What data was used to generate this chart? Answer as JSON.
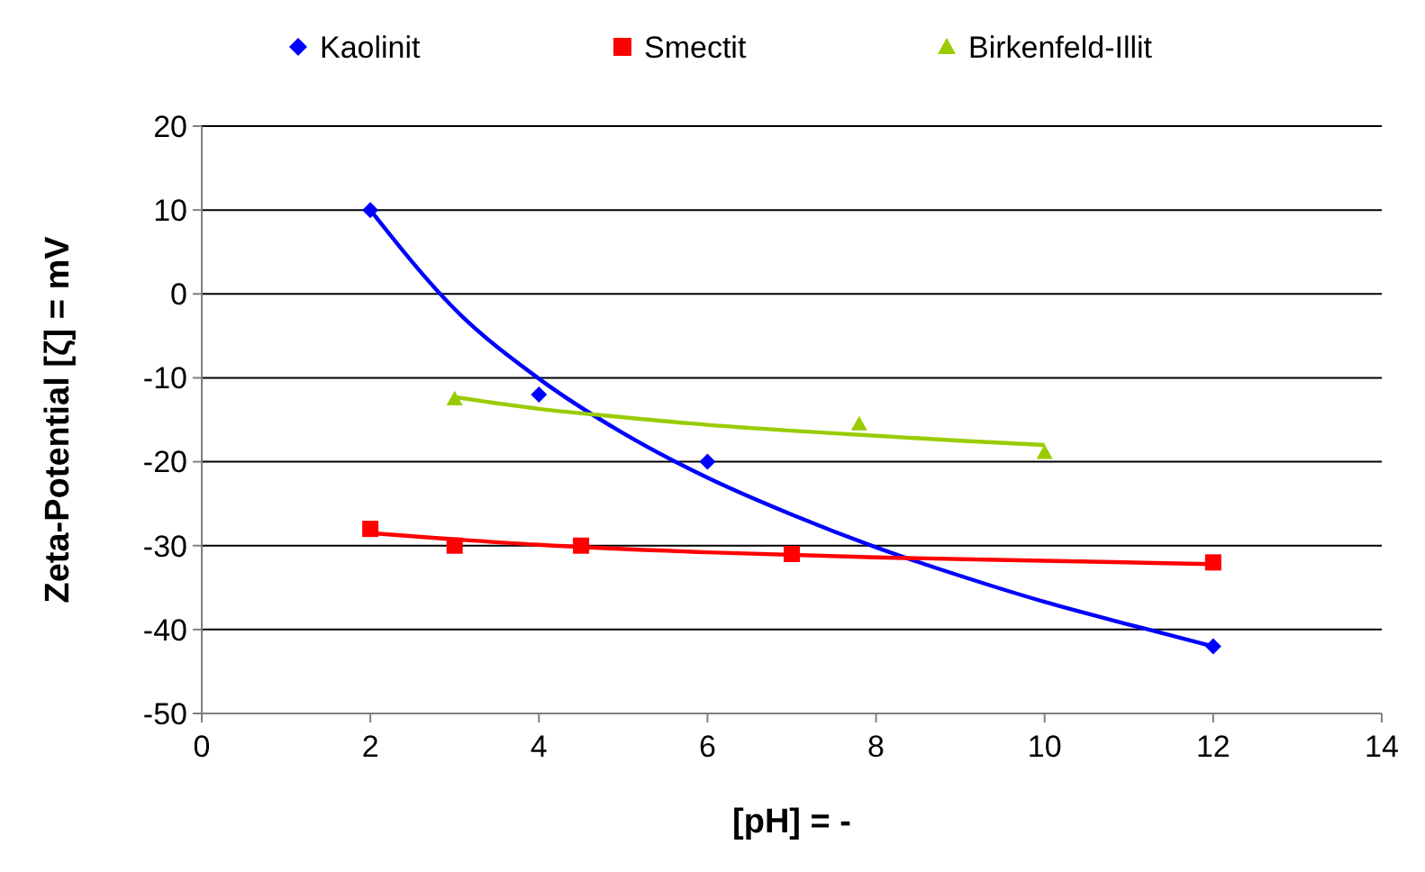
{
  "chart_data": {
    "type": "scatter",
    "xlabel": "[pH] = -",
    "ylabel": "Zeta-Potential [ζ] = mV",
    "xlim": [
      0,
      14
    ],
    "xticks": [
      0,
      2,
      4,
      6,
      8,
      10,
      12,
      14
    ],
    "ylim": [
      -50,
      20
    ],
    "yticks": [
      -50,
      -40,
      -30,
      -20,
      -10,
      0,
      10,
      20
    ],
    "grid": "y",
    "legend": "top",
    "series": [
      {
        "name": "Kaolinit",
        "color": "#0000ff",
        "marker": "diamond",
        "x": [
          2,
          4,
          6,
          12
        ],
        "values": [
          10,
          -12,
          -20,
          -42
        ]
      },
      {
        "name": "Smectit",
        "color": "#ff0000",
        "marker": "square",
        "x": [
          2,
          3,
          4.5,
          7,
          12
        ],
        "values": [
          -28,
          -30,
          -30,
          -31,
          -32
        ]
      },
      {
        "name": "Birkenfeld-Illit",
        "color": "#99cc00",
        "marker": "triangle",
        "x": [
          3,
          7.8,
          10
        ],
        "values": [
          -12.5,
          -15.5,
          -18.9
        ]
      },
      {
        "type": "line",
        "color": "#0000ff",
        "marker": "none",
        "x": [
          2,
          3,
          4,
          5,
          6,
          7,
          8,
          9,
          10,
          11,
          12
        ],
        "values": [
          10,
          -1.8,
          -10.1,
          -16.6,
          -21.9,
          -26.3,
          -30.2,
          -33.6,
          -36.7,
          -39.4,
          -42
        ]
      },
      {
        "type": "line",
        "color": "#ff0000",
        "marker": "none",
        "x": [
          2,
          4,
          6,
          8,
          10,
          12
        ],
        "values": [
          -28.5,
          -29.9,
          -30.8,
          -31.4,
          -31.8,
          -32.2
        ]
      },
      {
        "type": "line",
        "color": "#99cc00",
        "marker": "none",
        "x": [
          3,
          4,
          5,
          6,
          7,
          8,
          9,
          10
        ],
        "values": [
          -12.3,
          -13.7,
          -14.7,
          -15.6,
          -16.3,
          -16.9,
          -17.5,
          -18
        ]
      }
    ]
  }
}
